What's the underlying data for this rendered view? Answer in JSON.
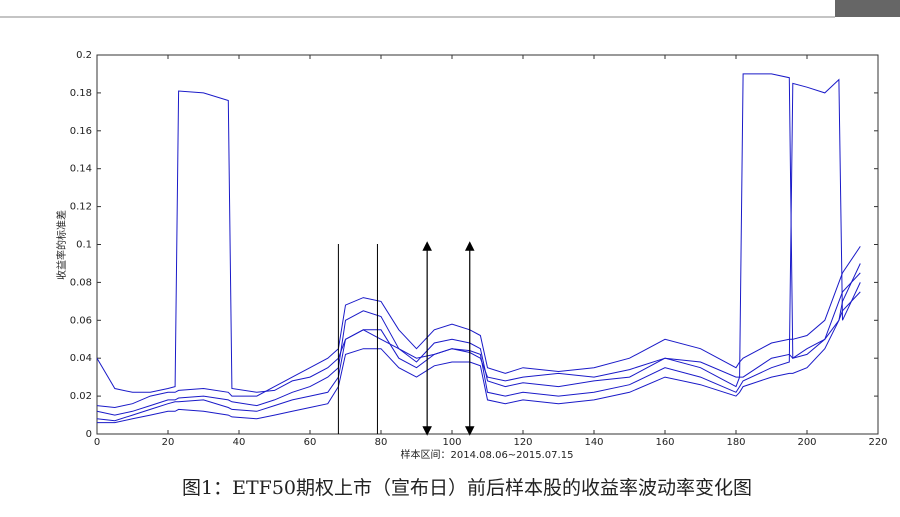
{
  "chart_data": {
    "type": "line",
    "xlabel": "样本区间：2014.08.06~2015.07.15",
    "ylabel": "收益率的标准差",
    "caption": "图1：ETF50期权上市（宣布日）前后样本股的收益率波动率变化图",
    "xlim": [
      0,
      220
    ],
    "xticks": [
      0,
      20,
      40,
      60,
      80,
      100,
      120,
      140,
      160,
      180,
      200,
      220
    ],
    "ylim": [
      0,
      0.2
    ],
    "yticks": [
      0,
      0.02,
      0.04,
      0.06,
      0.08,
      0.1,
      0.12,
      0.14,
      0.16,
      0.18,
      0.2
    ],
    "vlines": [
      68,
      79
    ],
    "arrows": [
      93,
      105
    ],
    "x": [
      0,
      5,
      10,
      15,
      20,
      22,
      23,
      30,
      37,
      38,
      45,
      50,
      55,
      60,
      65,
      68,
      70,
      75,
      80,
      85,
      90,
      95,
      100,
      105,
      108,
      110,
      115,
      120,
      130,
      140,
      150,
      160,
      170,
      180,
      181,
      182,
      190,
      195,
      196,
      200,
      205,
      209,
      210,
      215
    ],
    "series": [
      {
        "color": "#1a1ac8",
        "values": [
          0.04,
          0.024,
          0.022,
          0.022,
          0.024,
          0.025,
          0.181,
          0.18,
          0.176,
          0.024,
          0.022,
          0.023,
          0.028,
          0.03,
          0.035,
          0.04,
          0.05,
          0.055,
          0.05,
          0.045,
          0.04,
          0.042,
          0.045,
          0.043,
          0.04,
          0.03,
          0.028,
          0.03,
          0.032,
          0.03,
          0.034,
          0.04,
          0.038,
          0.03,
          0.03,
          0.03,
          0.04,
          0.042,
          0.04,
          0.045,
          0.05,
          0.06,
          0.07,
          0.09
        ]
      },
      {
        "color": "#1a1ac8",
        "values": [
          0.012,
          0.01,
          0.012,
          0.015,
          0.018,
          0.018,
          0.019,
          0.02,
          0.018,
          0.017,
          0.015,
          0.018,
          0.022,
          0.025,
          0.03,
          0.035,
          0.06,
          0.065,
          0.062,
          0.045,
          0.038,
          0.048,
          0.05,
          0.048,
          0.045,
          0.028,
          0.025,
          0.027,
          0.025,
          0.028,
          0.03,
          0.04,
          0.035,
          0.025,
          0.03,
          0.19,
          0.19,
          0.188,
          0.04,
          0.042,
          0.05,
          0.07,
          0.075,
          0.085
        ]
      },
      {
        "color": "#1a1ac8",
        "values": [
          0.008,
          0.007,
          0.01,
          0.013,
          0.016,
          0.017,
          0.017,
          0.018,
          0.014,
          0.013,
          0.012,
          0.015,
          0.018,
          0.02,
          0.022,
          0.03,
          0.05,
          0.055,
          0.055,
          0.04,
          0.035,
          0.042,
          0.045,
          0.044,
          0.042,
          0.022,
          0.02,
          0.022,
          0.02,
          0.022,
          0.026,
          0.035,
          0.03,
          0.022,
          0.025,
          0.028,
          0.035,
          0.038,
          0.185,
          0.183,
          0.18,
          0.187,
          0.06,
          0.08
        ]
      },
      {
        "color": "#1a1ac8",
        "values": [
          0.006,
          0.006,
          0.008,
          0.01,
          0.012,
          0.012,
          0.013,
          0.012,
          0.01,
          0.009,
          0.008,
          0.01,
          0.012,
          0.014,
          0.016,
          0.025,
          0.042,
          0.045,
          0.045,
          0.035,
          0.03,
          0.036,
          0.038,
          0.038,
          0.036,
          0.018,
          0.016,
          0.018,
          0.016,
          0.018,
          0.022,
          0.03,
          0.026,
          0.02,
          0.022,
          0.025,
          0.03,
          0.032,
          0.032,
          0.035,
          0.045,
          0.06,
          0.065,
          0.075
        ]
      },
      {
        "color": "#1a1ac8",
        "values": [
          0.015,
          0.014,
          0.016,
          0.02,
          0.022,
          0.022,
          0.023,
          0.024,
          0.022,
          0.02,
          0.02,
          0.025,
          0.03,
          0.035,
          0.04,
          0.045,
          0.068,
          0.072,
          0.07,
          0.055,
          0.045,
          0.055,
          0.058,
          0.055,
          0.052,
          0.035,
          0.032,
          0.035,
          0.033,
          0.035,
          0.04,
          0.05,
          0.045,
          0.035,
          0.038,
          0.04,
          0.048,
          0.05,
          0.05,
          0.052,
          0.06,
          0.08,
          0.085,
          0.099
        ]
      }
    ]
  }
}
